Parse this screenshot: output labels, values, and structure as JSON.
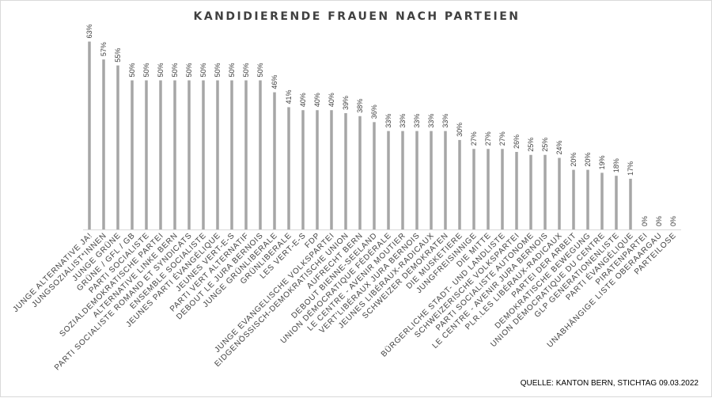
{
  "chart_data": {
    "type": "bar",
    "title": "KANDIDIERENDE FRAUEN NACH PARTEIEN",
    "source": "QUELLE: KANTON BERN, STICHTAG 09.03.2022",
    "ylim": [
      0,
      65
    ],
    "grid": false,
    "bar_color": "#a6a6a6",
    "categories": [
      "JUNGE ALTERNATIVE JA!",
      "JUNGSOZIALIST*INNEN",
      "JUNGE GRÜNE",
      "GRÜNE / GFL / GB",
      "PARTI SOCIALISTE",
      "SOZIALDEMOKRATISCHE PARTEI",
      "ALTERNATIVE LINKE BERN",
      "PARTI SOCIALISTE ROMAND ET SYNDICATS",
      "ENSEMBLE SOCIALISTE",
      "JEUNES PARTI ÉVANGÉLIQUE",
      "JEUNES VERT-E-S",
      "PARTI VERT ALTERNATIF",
      "DEBOUT LE JURA BERNOIS",
      "JUNGE GRÜNLIBERALE",
      "GRÜNLIBERALE",
      "LES VERT-E-S",
      "FDP",
      "JUNGE EVANGELISCHE VOLKSPARTEI",
      "EIDGENÖSSISCH-DEMOKRATISCHE UNION",
      "AUFRECHT BERN",
      "DEBOUT BIENNE-SEELAND",
      "UNION DÉMOCRATIQUE FÉDÉRALE",
      "LE CENTRE - AVENIR MOUTIER",
      "VERT'LIBÉRAUX JURA BERNOIS",
      "JEUNES LIBÉRAUX-RADICAUX",
      "SCHWEIZER DEMOKRATEN",
      "DIE MUSKETIERE",
      "JUNGFREISINNIGE",
      "DIE MITTE",
      "BÜRGERLICHE STADT- UND LANDLISTE",
      "SCHWEIZERISCHE VOLKSPARTEI",
      "PARTI SOCIALISTE AUTONOME",
      "LE CENTRE - AVENIR JURA BERNOIS",
      "PLR.LES LIBÉRAUX-RADICAUX",
      "PARTEI DER ARBEIT",
      "DEMOKRATISCHE BEWEGUNG",
      "UNION DÉMOCRATIQUE DU CENTRE",
      "GLP GENERATIONENLISTE",
      "PARTI ÉVANGÉLIQUE",
      "PIRATENPARTEI",
      "UNABHÄNGIGE LISTE OBERAARGAU",
      "PARTEILOSE"
    ],
    "values": [
      63,
      57,
      55,
      50,
      50,
      50,
      50,
      50,
      50,
      50,
      50,
      50,
      50,
      46,
      41,
      40,
      40,
      40,
      39,
      38,
      36,
      33,
      33,
      33,
      33,
      33,
      30,
      27,
      27,
      27,
      26,
      25,
      25,
      24,
      20,
      20,
      19,
      18,
      17,
      0,
      0,
      0
    ],
    "labels": [
      "63%",
      "57%",
      "55%",
      "50%",
      "50%",
      "50%",
      "50%",
      "50%",
      "50%",
      "50%",
      "50%",
      "50%",
      "50%",
      "46%",
      "41%",
      "40%",
      "40%",
      "40%",
      "39%",
      "38%",
      "36%",
      "33%",
      "33%",
      "33%",
      "33%",
      "33%",
      "30%",
      "27%",
      "27%",
      "27%",
      "26%",
      "25%",
      "25%",
      "24%",
      "20%",
      "20%",
      "19%",
      "18%",
      "17%",
      "0%",
      "0%",
      "0%"
    ]
  }
}
